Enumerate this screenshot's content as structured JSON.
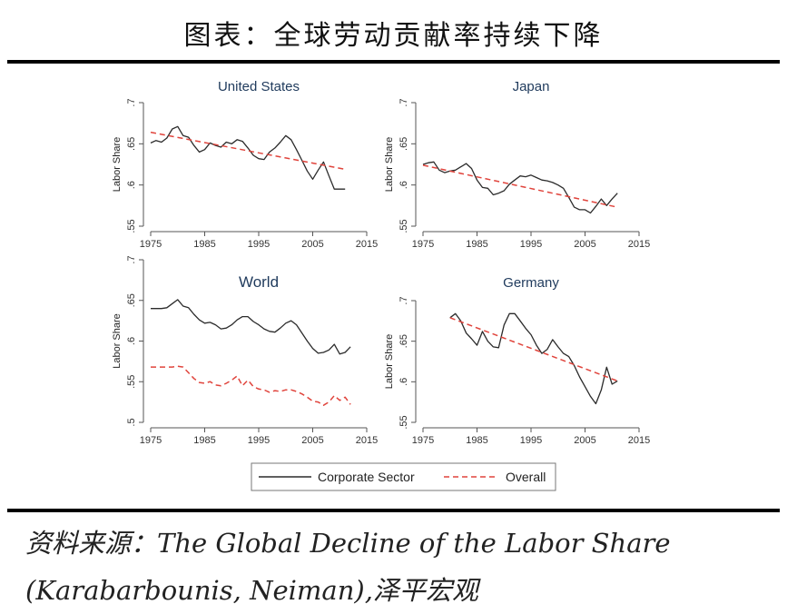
{
  "header": {
    "title": "图表：全球劳动贡献率持续下降"
  },
  "source": {
    "line1": "资料来源：The Global Decline of the Labor Share",
    "line2": "(Karabarbounis, Neiman),泽平宏观"
  },
  "legend": {
    "corporate": "Corporate Sector",
    "overall": "Overall"
  },
  "colors": {
    "corporate": "#2b2b2b",
    "overall": "#e0443c",
    "axis": "#555555"
  },
  "chart_data": [
    {
      "type": "line",
      "title": "United States",
      "ylabel": "Labor Share",
      "xlim": [
        1975,
        2015
      ],
      "ylim": [
        0.55,
        0.7
      ],
      "xticks": [
        "1975",
        "1985",
        "1995",
        "2005",
        "2015"
      ],
      "yticks": [
        ".55",
        ".6",
        ".65",
        ".7"
      ],
      "series": [
        {
          "name": "Corporate Sector",
          "x": [
            1975,
            1976,
            1977,
            1978,
            1979,
            1980,
            1981,
            1982,
            1983,
            1984,
            1985,
            1986,
            1987,
            1988,
            1989,
            1990,
            1991,
            1992,
            1993,
            1994,
            1995,
            1996,
            1997,
            1998,
            1999,
            2000,
            2001,
            2002,
            2003,
            2004,
            2005,
            2006,
            2007,
            2008,
            2009,
            2010,
            2011
          ],
          "y": [
            0.651,
            0.654,
            0.652,
            0.657,
            0.668,
            0.671,
            0.66,
            0.658,
            0.648,
            0.64,
            0.643,
            0.651,
            0.648,
            0.646,
            0.652,
            0.65,
            0.655,
            0.653,
            0.645,
            0.636,
            0.632,
            0.631,
            0.64,
            0.645,
            0.652,
            0.66,
            0.655,
            0.643,
            0.63,
            0.617,
            0.607,
            0.618,
            0.628,
            0.611,
            0.595,
            0.595,
            0.595
          ]
        },
        {
          "name": "Overall",
          "x": [
            1975,
            2011
          ],
          "y": [
            0.664,
            0.619
          ]
        }
      ]
    },
    {
      "type": "line",
      "title": "Japan",
      "ylabel": "Labor Share",
      "xlim": [
        1975,
        2015
      ],
      "ylim": [
        0.55,
        0.7
      ],
      "xticks": [
        "1975",
        "1985",
        "1995",
        "2005",
        "2015"
      ],
      "yticks": [
        ".55",
        ".6",
        ".65",
        ".7"
      ],
      "series": [
        {
          "name": "Corporate Sector",
          "x": [
            1975,
            1976,
            1977,
            1978,
            1979,
            1980,
            1981,
            1982,
            1983,
            1984,
            1985,
            1986,
            1987,
            1988,
            1989,
            1990,
            1991,
            1992,
            1993,
            1994,
            1995,
            1996,
            1997,
            1998,
            1999,
            2000,
            2001,
            2002,
            2003,
            2004,
            2005,
            2006,
            2007,
            2008,
            2009,
            2010,
            2011
          ],
          "y": [
            0.625,
            0.627,
            0.628,
            0.618,
            0.615,
            0.617,
            0.618,
            0.622,
            0.626,
            0.62,
            0.606,
            0.597,
            0.596,
            0.588,
            0.59,
            0.593,
            0.601,
            0.606,
            0.611,
            0.61,
            0.612,
            0.609,
            0.606,
            0.605,
            0.603,
            0.6,
            0.596,
            0.585,
            0.573,
            0.57,
            0.57,
            0.566,
            0.574,
            0.583,
            0.575,
            0.583,
            0.59
          ]
        },
        {
          "name": "Overall",
          "x": [
            1975,
            2011
          ],
          "y": [
            0.624,
            0.573
          ]
        }
      ]
    },
    {
      "type": "line",
      "title": "World",
      "ylabel": "Labor Share",
      "xlim": [
        1975,
        2015
      ],
      "ylim": [
        0.5,
        0.7
      ],
      "xticks": [
        "1975",
        "1985",
        "1995",
        "2005",
        "2015"
      ],
      "yticks": [
        ".5",
        ".55",
        ".6",
        ".65",
        ".7"
      ],
      "series": [
        {
          "name": "Corporate Sector",
          "x": [
            1975,
            1976,
            1977,
            1978,
            1979,
            1980,
            1981,
            1982,
            1983,
            1984,
            1985,
            1986,
            1987,
            1988,
            1989,
            1990,
            1991,
            1992,
            1993,
            1994,
            1995,
            1996,
            1997,
            1998,
            1999,
            2000,
            2001,
            2002,
            2003,
            2004,
            2005,
            2006,
            2007,
            2008,
            2009,
            2010,
            2011,
            2012
          ],
          "y": [
            0.64,
            0.64,
            0.64,
            0.641,
            0.646,
            0.651,
            0.643,
            0.641,
            0.633,
            0.626,
            0.622,
            0.623,
            0.62,
            0.615,
            0.616,
            0.62,
            0.626,
            0.63,
            0.63,
            0.624,
            0.62,
            0.615,
            0.612,
            0.611,
            0.616,
            0.622,
            0.625,
            0.62,
            0.61,
            0.6,
            0.591,
            0.585,
            0.586,
            0.589,
            0.596,
            0.584,
            0.586,
            0.593
          ]
        },
        {
          "name": "Overall",
          "x": [
            1975,
            1976,
            1977,
            1978,
            1979,
            1980,
            1981,
            1982,
            1983,
            1984,
            1985,
            1986,
            1987,
            1988,
            1989,
            1990,
            1991,
            1992,
            1993,
            1994,
            1995,
            1996,
            1997,
            1998,
            1999,
            2000,
            2001,
            2002,
            2003,
            2004,
            2005,
            2006,
            2007,
            2008,
            2009,
            2010,
            2011,
            2012
          ],
          "y": [
            0.568,
            0.568,
            0.568,
            0.568,
            0.568,
            0.569,
            0.568,
            0.561,
            0.554,
            0.549,
            0.548,
            0.55,
            0.546,
            0.545,
            0.548,
            0.552,
            0.557,
            0.545,
            0.552,
            0.544,
            0.541,
            0.54,
            0.537,
            0.539,
            0.538,
            0.54,
            0.54,
            0.538,
            0.535,
            0.531,
            0.526,
            0.525,
            0.521,
            0.525,
            0.533,
            0.527,
            0.531,
            0.522
          ]
        }
      ]
    },
    {
      "type": "line",
      "title": "Germany",
      "ylabel": "Labor Share",
      "xlim": [
        1975,
        2015
      ],
      "ylim": [
        0.55,
        0.7
      ],
      "xticks": [
        "1975",
        "1985",
        "1995",
        "2005",
        "2015"
      ],
      "yticks": [
        ".55",
        ".6",
        ".65",
        ".7"
      ],
      "series": [
        {
          "name": "Corporate Sector",
          "x": [
            1980,
            1981,
            1982,
            1983,
            1984,
            1985,
            1986,
            1987,
            1988,
            1989,
            1990,
            1991,
            1992,
            1993,
            1994,
            1995,
            1996,
            1997,
            1998,
            1999,
            2000,
            2001,
            2002,
            2003,
            2004,
            2005,
            2006,
            2007,
            2008,
            2009,
            2010,
            2011
          ],
          "y": [
            0.679,
            0.684,
            0.675,
            0.66,
            0.653,
            0.645,
            0.662,
            0.65,
            0.643,
            0.642,
            0.67,
            0.684,
            0.684,
            0.675,
            0.666,
            0.658,
            0.645,
            0.635,
            0.64,
            0.652,
            0.643,
            0.635,
            0.631,
            0.62,
            0.606,
            0.594,
            0.582,
            0.573,
            0.59,
            0.618,
            0.597,
            0.601
          ]
        },
        {
          "name": "Overall",
          "x": [
            1980,
            2011
          ],
          "y": [
            0.679,
            0.601
          ]
        }
      ]
    }
  ]
}
